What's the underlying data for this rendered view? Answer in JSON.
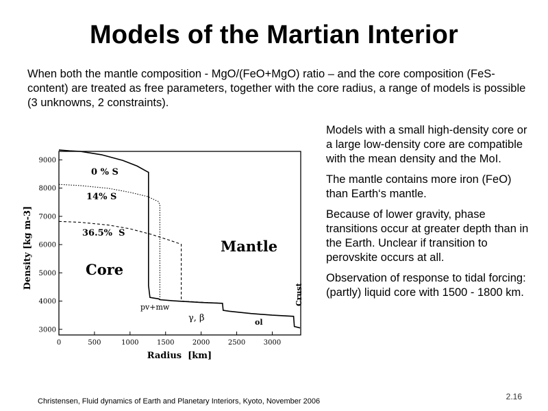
{
  "slide": {
    "title": "Models of the Martian Interior",
    "intro": "When both the mantle composition - MgO/(FeO+MgO) ratio – and the core composition (FeS-content) are treated as free parameters, together with the core radius, a range of models is possible (3 unknowns, 2 constraints).",
    "bullets": [
      "Models with a small high-density core or a large low-density core are compatible with the mean density and the MoI.",
      "The mantle contains more iron (FeO) than Earth‘s mantle.",
      "Because of lower gravity, phase transitions occur at greater depth than in the Earth. Unclear if transition to perovskite occurs at all.",
      "Observation of response to tidal forcing: (partly) liquid core with 1500 - 1800 km."
    ],
    "footer": "Christensen, Fluid dynamics of Earth and Planetary Interiors, Kyoto, November 2006",
    "slide_number": "2.16"
  },
  "chart_data": {
    "type": "line",
    "title": "",
    "xlabel": "Radius  [km]",
    "ylabel": "Density [kg m-3]",
    "xlim": [
      0,
      3400
    ],
    "ylim": [
      2800,
      9300
    ],
    "xticks": [
      0,
      500,
      1000,
      1500,
      2000,
      2500,
      3000
    ],
    "yticks": [
      3000,
      4000,
      5000,
      6000,
      7000,
      8000,
      9000
    ],
    "grid": false,
    "series": [
      {
        "name": "0 % S",
        "style": "solid",
        "points": [
          [
            0,
            9350
          ],
          [
            150,
            9320
          ],
          [
            300,
            9300
          ],
          [
            600,
            9180
          ],
          [
            900,
            8980
          ],
          [
            1100,
            8780
          ],
          [
            1230,
            8600
          ],
          [
            1260,
            8560
          ],
          [
            1260,
            4550
          ],
          [
            1280,
            4130
          ],
          [
            1350,
            4100
          ],
          [
            1400,
            4080
          ],
          [
            1420,
            4050
          ],
          [
            1600,
            4010
          ],
          [
            2000,
            3950
          ],
          [
            2300,
            3920
          ],
          [
            2310,
            3670
          ],
          [
            2400,
            3640
          ],
          [
            2700,
            3560
          ],
          [
            3000,
            3500
          ],
          [
            3300,
            3460
          ],
          [
            3310,
            3100
          ],
          [
            3390,
            3050
          ]
        ]
      },
      {
        "name": "14% S",
        "style": "dotted",
        "points": [
          [
            0,
            8130
          ],
          [
            300,
            8090
          ],
          [
            700,
            7990
          ],
          [
            1000,
            7850
          ],
          [
            1250,
            7700
          ],
          [
            1400,
            7520
          ],
          [
            1420,
            7400
          ],
          [
            1420,
            4050
          ],
          [
            1600,
            4010
          ],
          [
            2000,
            3950
          ],
          [
            2300,
            3920
          ]
        ]
      },
      {
        "name": "36.5%  S",
        "style": "dashed",
        "points": [
          [
            0,
            6820
          ],
          [
            300,
            6790
          ],
          [
            700,
            6690
          ],
          [
            1000,
            6560
          ],
          [
            1300,
            6360
          ],
          [
            1550,
            6160
          ],
          [
            1720,
            6010
          ],
          [
            1720,
            4000
          ],
          [
            2000,
            3960
          ],
          [
            2300,
            3920
          ]
        ]
      }
    ],
    "annotations": {
      "series_0": "0 % S",
      "series_1": "14% S",
      "series_2": "36.5%  S",
      "mantle": "Mantle",
      "core": "Core",
      "crust": "Crust",
      "pv_mw": "pv+mw",
      "ol": "ol",
      "gamma_beta": "γ, β"
    }
  }
}
